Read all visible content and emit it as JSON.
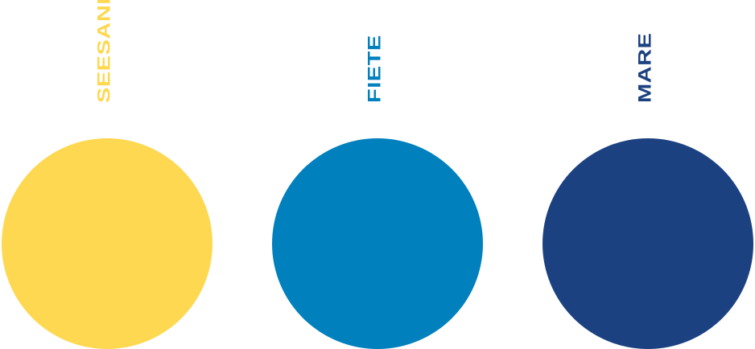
{
  "swatches": [
    {
      "name": "SEESAND",
      "color": "#FED850"
    },
    {
      "name": "FIETE",
      "color": "#0080BD"
    },
    {
      "name": "MARE",
      "color": "#1C4180"
    }
  ]
}
